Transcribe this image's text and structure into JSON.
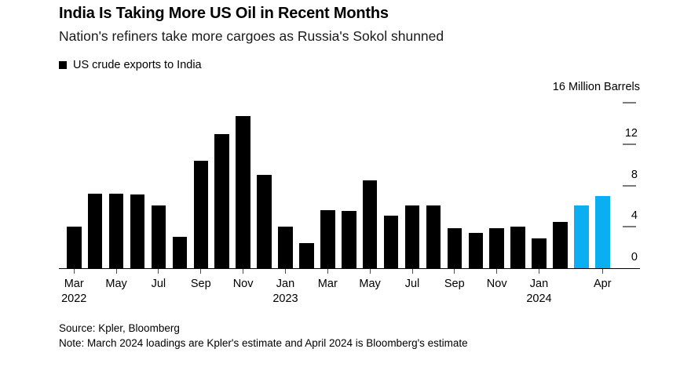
{
  "header": {
    "title": "India Is Taking More US Oil in Recent Months",
    "subtitle": "Nation's refiners take more cargoes as Russia's Sokol shunned"
  },
  "legend": {
    "label": "US crude exports to India",
    "swatch_color": "#000000"
  },
  "footer": {
    "source": "Source: Kpler, Bloomberg",
    "note": "Note: March 2024 loadings are Kpler's estimate and April 2024 is Bloomberg's estimate"
  },
  "chart_data": {
    "type": "bar",
    "title": "India Is Taking More US Oil in Recent Months",
    "series_name": "US crude exports to India",
    "unit_label": "16 Million Barrels",
    "x": [
      "Mar 2022",
      "Apr 2022",
      "May 2022",
      "Jun 2022",
      "Jul 2022",
      "Aug 2022",
      "Sep 2022",
      "Oct 2022",
      "Nov 2022",
      "Dec 2022",
      "Jan 2023",
      "Feb 2023",
      "Mar 2023",
      "Apr 2023",
      "May 2023",
      "Jun 2023",
      "Jul 2023",
      "Aug 2023",
      "Sep 2023",
      "Oct 2023",
      "Nov 2023",
      "Dec 2023",
      "Jan 2024",
      "Feb 2024",
      "Mar 2024",
      "Apr 2024"
    ],
    "values": [
      4.0,
      7.2,
      7.2,
      7.1,
      6.1,
      3.0,
      10.4,
      13.0,
      14.7,
      9.0,
      4.0,
      2.4,
      5.6,
      5.5,
      8.5,
      5.1,
      6.1,
      6.1,
      3.9,
      3.4,
      3.9,
      4.0,
      2.9,
      4.5,
      6.1,
      7.0
    ],
    "bar_color": "#000000",
    "highlight": {
      "indices": [
        24,
        25
      ],
      "color": "#0CAEF2"
    },
    "y_axis": {
      "ylim": [
        0,
        16
      ],
      "dash_values": [
        16,
        12,
        8,
        4
      ],
      "tick_labels": [
        12,
        8,
        4,
        0
      ],
      "grid": false,
      "side": "right"
    },
    "x_ticks": [
      {
        "index": 0,
        "label": "Mar",
        "year": "2022"
      },
      {
        "index": 2,
        "label": "May"
      },
      {
        "index": 4,
        "label": "Jul"
      },
      {
        "index": 6,
        "label": "Sep"
      },
      {
        "index": 8,
        "label": "Nov"
      },
      {
        "index": 10,
        "label": "Jan",
        "year": "2023"
      },
      {
        "index": 12,
        "label": "Mar"
      },
      {
        "index": 14,
        "label": "May"
      },
      {
        "index": 16,
        "label": "Jul"
      },
      {
        "index": 18,
        "label": "Sep"
      },
      {
        "index": 20,
        "label": "Nov"
      },
      {
        "index": 22,
        "label": "Jan",
        "year": "2024"
      },
      {
        "index": 25,
        "label": "Apr"
      }
    ]
  }
}
